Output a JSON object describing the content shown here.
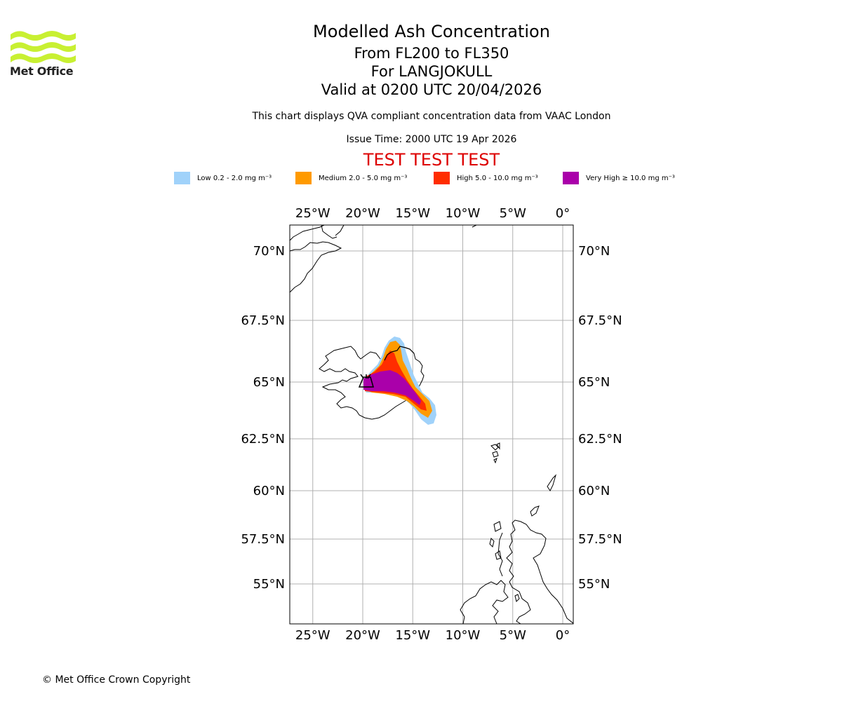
{
  "header": {
    "logo_text": "Met Office",
    "title": "Modelled Ash Concentration",
    "subtitle_levels": "From FL200 to FL350",
    "subtitle_volcano": "For LANGJOKULL",
    "subtitle_valid": "Valid at 0200 UTC 20/04/2026",
    "description": "This chart displays QVA compliant concentration data from VAAC London",
    "issue_time": "Issue Time: 2000 UTC 19 Apr 2026",
    "test_banner": "TEST TEST TEST"
  },
  "legend": [
    {
      "label": "Low 0.2 - 2.0 mg m⁻³",
      "color": "#a0d2fa"
    },
    {
      "label": "Medium 2.0 - 5.0 mg m⁻³",
      "color": "#ff9a00"
    },
    {
      "label": "High 5.0 - 10.0 mg m⁻³",
      "color": "#ff2d00"
    },
    {
      "label": "Very High ≥ 10.0 mg m⁻³",
      "color": "#aa00aa"
    }
  ],
  "map": {
    "lon_ticks": [
      "25°W",
      "20°W",
      "15°W",
      "10°W",
      "5°W",
      "0°"
    ],
    "lat_ticks": [
      "70°N",
      "67.5°N",
      "65°N",
      "62.5°N",
      "60°N",
      "57.5°N",
      "55°N"
    ],
    "lon_values": [
      -25,
      -20,
      -15,
      -10,
      -5,
      0
    ],
    "lat_values": [
      70,
      67.5,
      65,
      62.5,
      60,
      57.5,
      55
    ],
    "gridline_color": "#b0b0b0",
    "volcano_icon": "volcano-icon"
  },
  "footer": {
    "copyright": "© Met Office Crown Copyright"
  }
}
